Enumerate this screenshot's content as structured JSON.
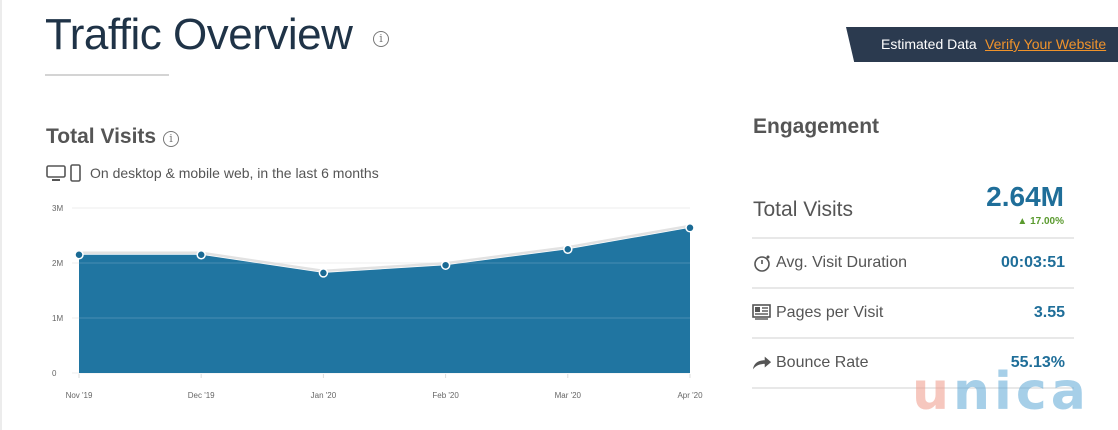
{
  "header": {
    "title": "Traffic Overview",
    "info_icon": "info-icon"
  },
  "banner": {
    "estimated_label": "Estimated Data",
    "verify_link": "Verify Your Website",
    "link_color": "#f0932b",
    "bg_color": "#2b3a4f"
  },
  "total_visits_section": {
    "title": "Total Visits",
    "info_icon": "info-icon",
    "device_icons": [
      "desktop-icon",
      "mobile-icon"
    ],
    "subtitle": "On desktop & mobile web, in the last 6 months"
  },
  "chart_data": {
    "type": "area",
    "title": "Total Visits",
    "subtitle": "On desktop & mobile web, in the last 6 months",
    "categories": [
      "Nov '19",
      "Dec '19",
      "Jan '20",
      "Feb '20",
      "Mar '20",
      "Apr '20"
    ],
    "series": [
      {
        "name": "Total Visits",
        "values": [
          2150000,
          2150000,
          1820000,
          1960000,
          2250000,
          2640000
        ],
        "color": "#2075a1"
      }
    ],
    "y_ticks": [
      "0",
      "1M",
      "2M",
      "3M"
    ],
    "ylim": [
      0,
      3000000
    ],
    "xlabel": "",
    "ylabel": "",
    "grid": true,
    "legend": "none"
  },
  "engagement": {
    "title": "Engagement",
    "total_visits": {
      "label": "Total Visits",
      "value": "2.64M",
      "change": "17.00%",
      "change_direction": "up",
      "change_color": "#5a9a2e",
      "value_color": "#1f6e99"
    },
    "metrics": [
      {
        "icon": "stopwatch-icon",
        "label": "Avg. Visit Duration",
        "value": "00:03:51"
      },
      {
        "icon": "pages-icon",
        "label": "Pages per Visit",
        "value": "3.55"
      },
      {
        "icon": "bounce-arrow-icon",
        "label": "Bounce Rate",
        "value": "55.13%"
      }
    ]
  },
  "watermark": {
    "first": "u",
    "rest": "nica"
  }
}
